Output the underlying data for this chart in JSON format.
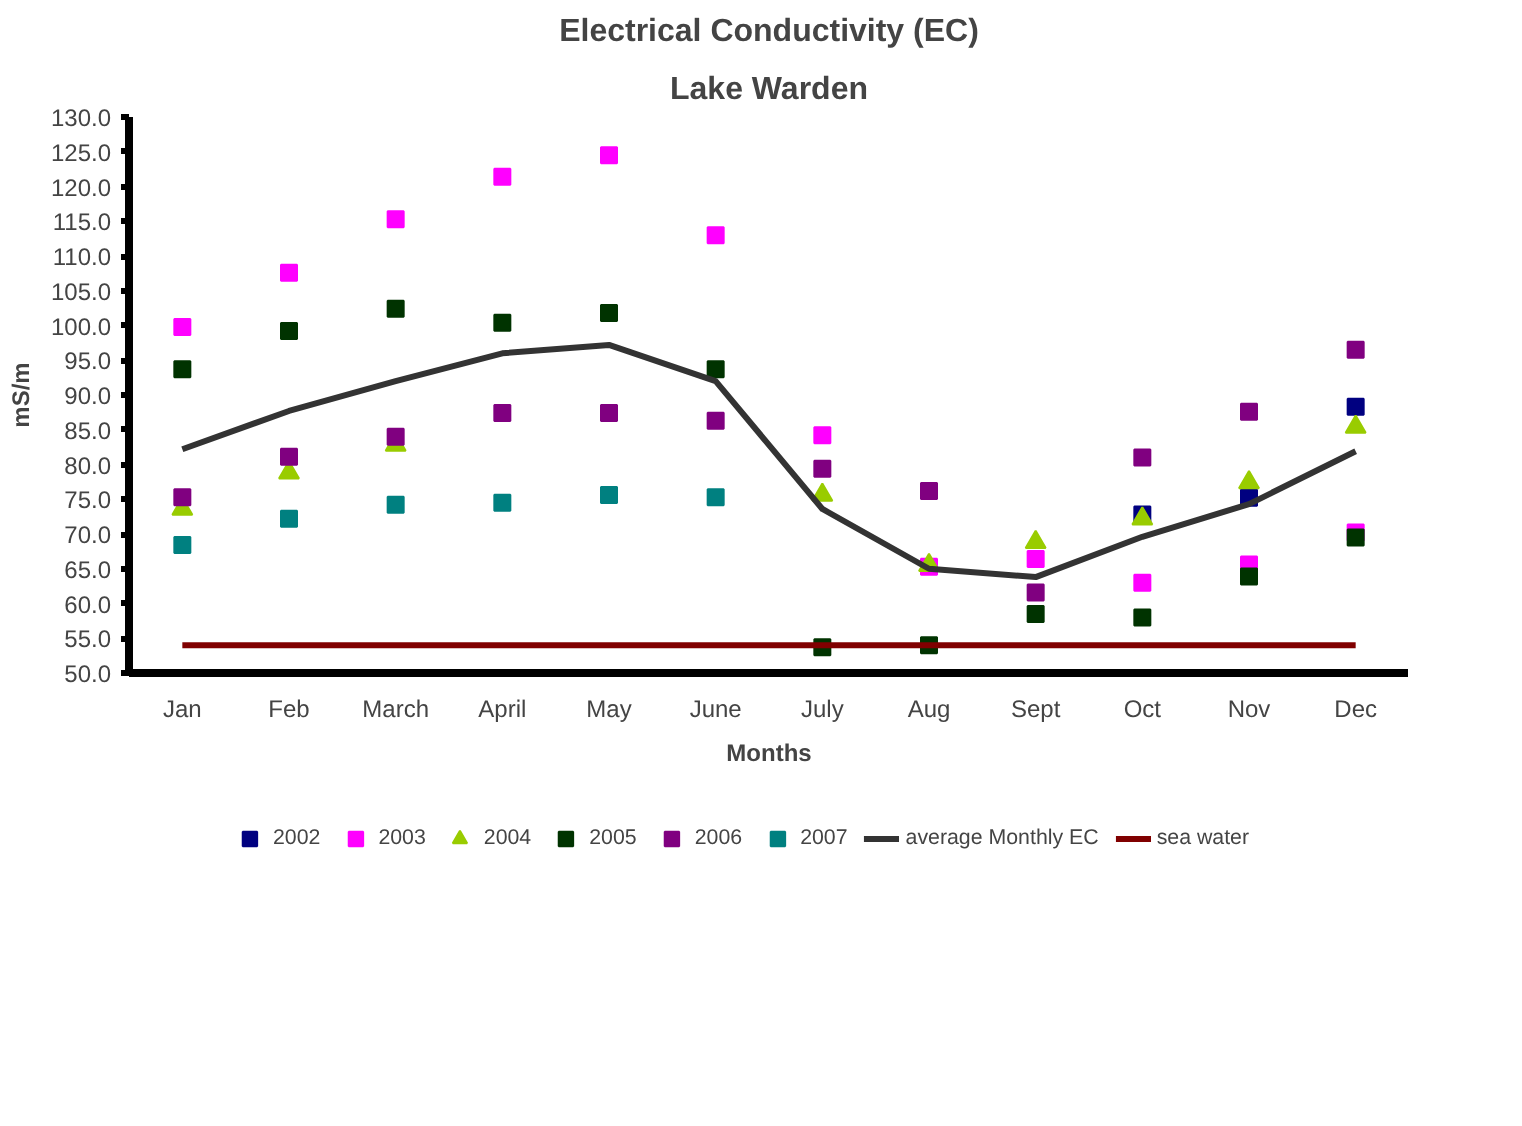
{
  "chart_data": {
    "type": "scatter",
    "title": "Electrical Conductivity (EC)",
    "subtitle": "Lake Warden",
    "xlabel": "Months",
    "ylabel": "mS/m",
    "categories": [
      "Jan",
      "Feb",
      "March",
      "April",
      "May",
      "June",
      "July",
      "Aug",
      "Sept",
      "Oct",
      "Nov",
      "Dec"
    ],
    "ylim": [
      50,
      130
    ],
    "yticks": [
      {
        "value": 50,
        "label": "50.0"
      },
      {
        "value": 55,
        "label": "55.0"
      },
      {
        "value": 60,
        "label": "60.0"
      },
      {
        "value": 65,
        "label": "65.0"
      },
      {
        "value": 70,
        "label": "70.0"
      },
      {
        "value": 75,
        "label": "75.0"
      },
      {
        "value": 80,
        "label": "80.0"
      },
      {
        "value": 85,
        "label": "85.0"
      },
      {
        "value": 90,
        "label": "90.0"
      },
      {
        "value": 95,
        "label": "95.0"
      },
      {
        "value": 100,
        "label": "100.0"
      },
      {
        "value": 105,
        "label": "105.0"
      },
      {
        "value": 110,
        "label": "110.0"
      },
      {
        "value": 115,
        "label": "115.0"
      },
      {
        "value": 120,
        "label": "120.0"
      },
      {
        "value": 125,
        "label": "125.0"
      },
      {
        "value": 130,
        "label": "130.0"
      }
    ],
    "grid": false,
    "legend": "bottom",
    "marker": "square",
    "series": [
      {
        "name": "2002",
        "color": "#000080",
        "values": [
          null,
          null,
          null,
          null,
          null,
          null,
          null,
          null,
          null,
          72.8,
          75.2,
          88.3
        ]
      },
      {
        "name": "2003",
        "color": "#ff00ff",
        "values": [
          99.8,
          107.6,
          115.3,
          121.4,
          124.5,
          113.0,
          84.2,
          65.3,
          66.4,
          63.0,
          65.6,
          70.2
        ]
      },
      {
        "name": "2004",
        "color": "#99cc00",
        "marker": "triangle",
        "values": [
          73.6,
          78.8,
          82.8,
          null,
          null,
          null,
          75.6,
          65.5,
          68.8,
          72.2,
          77.4,
          85.4
        ]
      },
      {
        "name": "2005",
        "color": "#003300",
        "values": [
          93.7,
          99.2,
          102.4,
          100.4,
          101.8,
          93.7,
          53.7,
          54.0,
          58.5,
          58.0,
          63.9,
          69.5
        ]
      },
      {
        "name": "2006",
        "color": "#800080",
        "values": [
          75.3,
          81.1,
          84.0,
          87.4,
          87.4,
          86.3,
          79.4,
          76.2,
          61.6,
          81.0,
          87.6,
          96.5
        ]
      },
      {
        "name": "2007",
        "color": "#008080",
        "values": [
          68.4,
          72.2,
          74.2,
          74.5,
          75.6,
          75.3,
          null,
          null,
          null,
          null,
          null,
          null
        ]
      },
      {
        "name": "average Monthly EC",
        "color": "#333333",
        "type": "line",
        "marker": "none",
        "values": [
          82.2,
          87.7,
          92.0,
          96.0,
          97.2,
          92.0,
          73.6,
          65.0,
          63.8,
          69.6,
          74.3,
          81.9
        ]
      },
      {
        "name": "sea water",
        "color": "#800000",
        "type": "line",
        "marker": "none",
        "values": [
          54.0,
          54.0,
          54.0,
          54.0,
          54.0,
          54.0,
          54.0,
          54.0,
          54.0,
          54.0,
          54.0,
          54.0
        ]
      }
    ]
  }
}
